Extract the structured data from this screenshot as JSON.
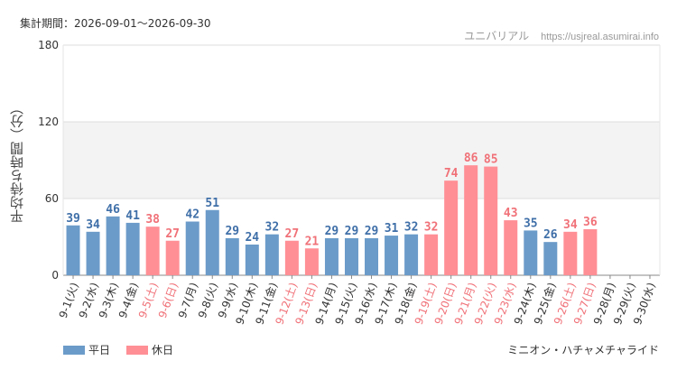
{
  "header": {
    "period": "集計期間：2026-09-01～2026-09-30",
    "site_name": "ユニバリアル",
    "site_url": "https://usjreal.asumirai.info"
  },
  "colors": {
    "weekday": "#6b9bc9",
    "holiday": "#ff8f95",
    "weekday_text": "#3f6fa8",
    "holiday_text": "#f07178"
  },
  "legend": {
    "weekday": "平日",
    "holiday": "休日"
  },
  "attraction": "ミニオン・ハチャメチャライド",
  "chart_data": {
    "type": "bar",
    "ylabel": "平均待ち時間（分）",
    "ylim": [
      0,
      180
    ],
    "yticks": [
      0,
      60,
      120,
      180
    ],
    "categories": [
      "9-1(火)",
      "9-2(水)",
      "9-3(木)",
      "9-4(金)",
      "9-5(土)",
      "9-6(日)",
      "9-7(月)",
      "9-8(火)",
      "9-9(水)",
      "9-10(木)",
      "9-11(金)",
      "9-12(土)",
      "9-13(日)",
      "9-14(月)",
      "9-15(火)",
      "9-16(水)",
      "9-17(木)",
      "9-18(金)",
      "9-19(土)",
      "9-20(日)",
      "9-21(月)",
      "9-22(火)",
      "9-23(水)",
      "9-24(木)",
      "9-25(金)",
      "9-26(土)",
      "9-27(日)",
      "9-28(月)",
      "9-29(火)",
      "9-30(水)"
    ],
    "values": [
      39,
      34,
      46,
      41,
      38,
      27,
      42,
      51,
      29,
      24,
      32,
      27,
      21,
      29,
      29,
      29,
      31,
      32,
      32,
      74,
      86,
      85,
      43,
      35,
      26,
      34,
      36,
      null,
      null,
      null
    ],
    "holiday": [
      false,
      false,
      false,
      false,
      true,
      true,
      false,
      false,
      false,
      false,
      false,
      true,
      true,
      false,
      false,
      false,
      false,
      false,
      true,
      true,
      true,
      true,
      true,
      false,
      false,
      true,
      true,
      false,
      false,
      false
    ],
    "grid": true,
    "band": [
      60,
      120
    ]
  }
}
